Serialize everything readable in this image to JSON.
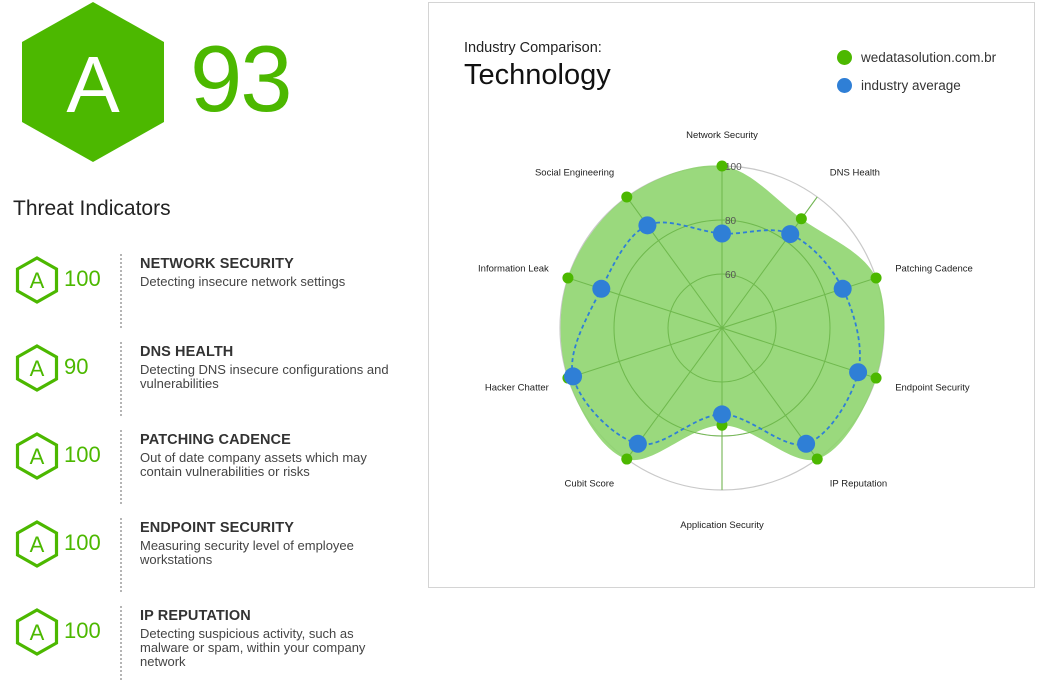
{
  "overall": {
    "grade": "A",
    "score": "93"
  },
  "section_title": "Threat Indicators",
  "indicators": [
    {
      "grade": "A",
      "score": "100",
      "name": "NETWORK SECURITY",
      "description": "Detecting insecure network settings"
    },
    {
      "grade": "A",
      "score": "90",
      "name": "DNS HEALTH",
      "description": "Detecting DNS insecure configurations and vulnerabilities"
    },
    {
      "grade": "A",
      "score": "100",
      "name": "PATCHING CADENCE",
      "description": "Out of date company assets which may contain vulnerabilities or risks"
    },
    {
      "grade": "A",
      "score": "100",
      "name": "ENDPOINT SECURITY",
      "description": "Measuring security level of employee workstations"
    },
    {
      "grade": "A",
      "score": "100",
      "name": "IP REPUTATION",
      "description": "Detecting suspicious activity, such as malware or spam, within your company network"
    }
  ],
  "colors": {
    "grade_green": "#4cb800",
    "company": "#4cb800",
    "company_fill": "#8cd46b",
    "industry": "#2f7fd6",
    "grid": "#c9c9c9"
  },
  "chart_data": {
    "type": "radar",
    "subtitle": "Industry Comparison:",
    "title": "Technology",
    "legend_position": "top-right",
    "categories": [
      "Network Security",
      "DNS Health",
      "Patching Cadence",
      "Endpoint Security",
      "IP Reputation",
      "Application Security",
      "Cubit Score",
      "Hacker Chatter",
      "Information Leak",
      "Social Engineering"
    ],
    "radial_range": [
      40,
      100
    ],
    "radial_ticks": [
      "60",
      "80",
      "100"
    ],
    "series": [
      {
        "name": "wedatasolution.com.br",
        "values": [
          100,
          90,
          100,
          100,
          100,
          76,
          100,
          100,
          100,
          100
        ]
      },
      {
        "name": "industry average",
        "values": [
          75,
          83,
          87,
          93,
          93,
          72,
          93,
          98,
          87,
          87
        ]
      }
    ]
  }
}
